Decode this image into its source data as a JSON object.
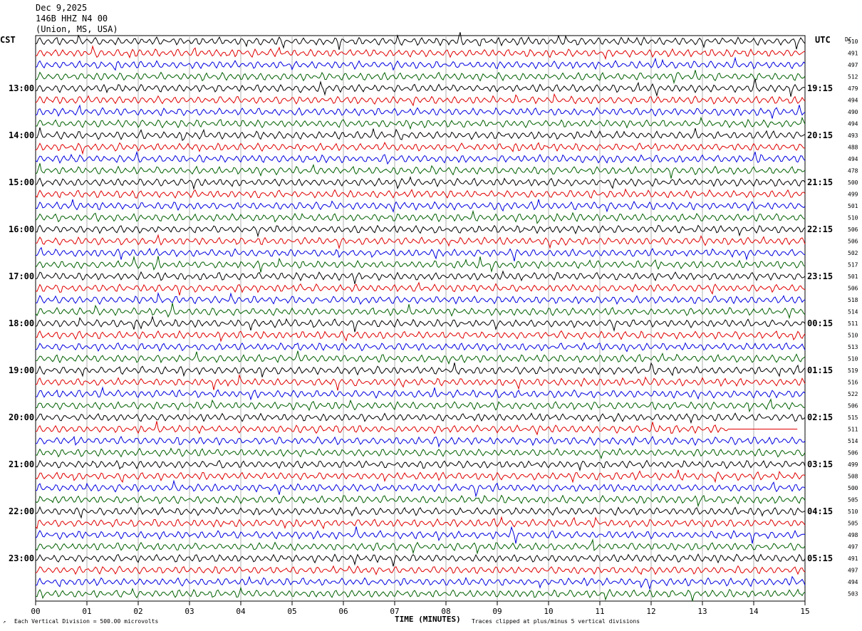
{
  "header": {
    "date": "Dec 9,2025",
    "station": "146B HHZ N4 00",
    "location": "(Union, MS, USA)"
  },
  "left_tz": "CST",
  "right_tz": "UTC",
  "dc_label": "DC",
  "footer": {
    "scale_note": "Each Vertical Division =  500.00 microvolts",
    "xlabel": "TIME (MINUTES)",
    "clip_note": "Traces clipped at plus/minus 5 vertical divisions"
  },
  "chart_data": {
    "type": "line",
    "xlabel": "TIME (MINUTES)",
    "xlim": [
      0,
      15
    ],
    "x_ticks": [
      "00",
      "01",
      "02",
      "03",
      "04",
      "05",
      "06",
      "07",
      "08",
      "09",
      "10",
      "11",
      "12",
      "13",
      "14",
      "15"
    ],
    "trace_colors": [
      "#000000",
      "#e00000",
      "#0000e0",
      "#006000"
    ],
    "left_hour_labels": [
      "13:00",
      "14:00",
      "15:00",
      "16:00",
      "17:00",
      "18:00",
      "19:00",
      "20:00",
      "21:00",
      "22:00",
      "23:00"
    ],
    "right_hour_labels": [
      "19:15",
      "20:15",
      "21:15",
      "22:15",
      "23:15",
      "00:15",
      "01:15",
      "02:15",
      "03:15",
      "04:15",
      "05:15"
    ],
    "dc_offsets": [
      510,
      491,
      497,
      512,
      479,
      494,
      490,
      494,
      493,
      488,
      494,
      478,
      500,
      499,
      501,
      510,
      506,
      506,
      502,
      517,
      501,
      506,
      518,
      514,
      511,
      510,
      513,
      510,
      519,
      516,
      522,
      506,
      515,
      511,
      514,
      506,
      499,
      508,
      500,
      505,
      510,
      505,
      498,
      497,
      491,
      497,
      494,
      503
    ],
    "trace_rows": 48,
    "dataless_segment": {
      "row": 33,
      "from_minute": 13.5,
      "to_minute": 14.85
    }
  }
}
